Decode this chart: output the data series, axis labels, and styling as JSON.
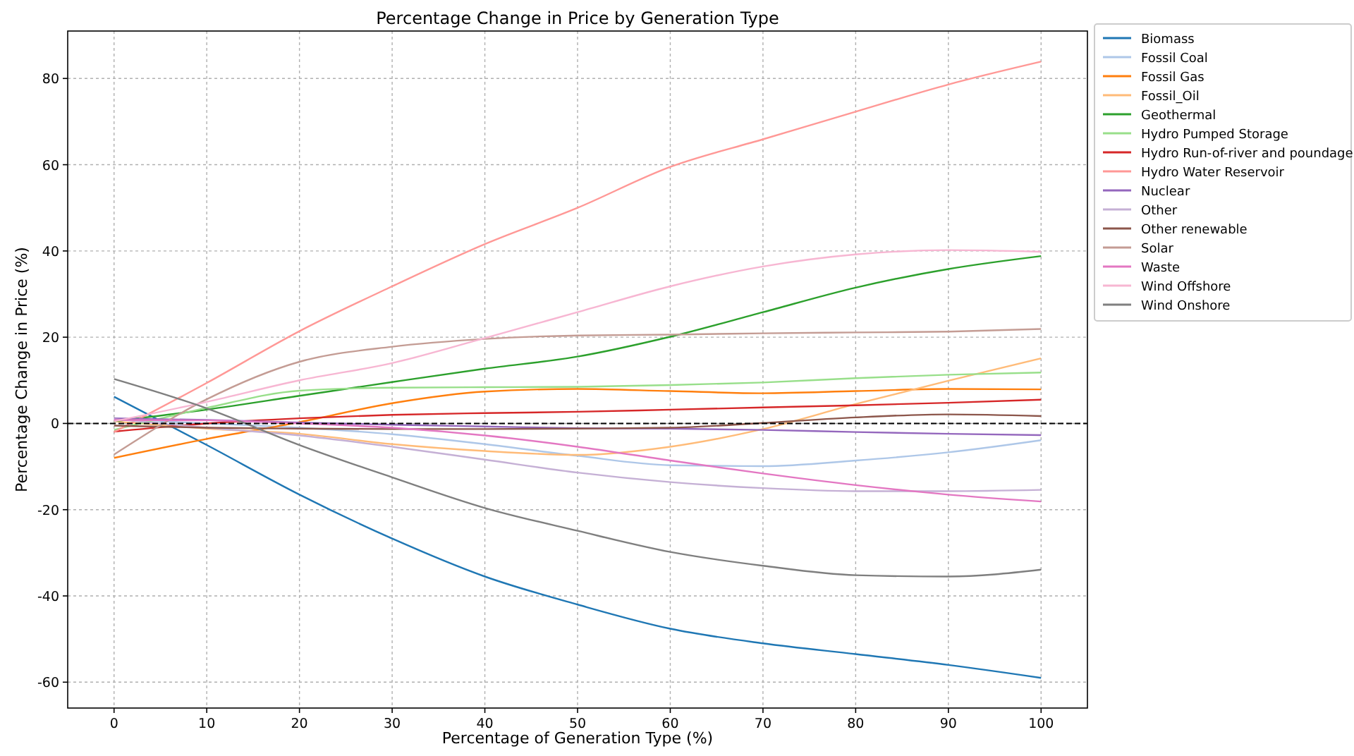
{
  "chart_data": {
    "type": "line",
    "title": "Percentage Change in Price by Generation Type",
    "xlabel": "Percentage of Generation Type (%)",
    "ylabel": "Percentage Change in Price (%)",
    "x": [
      0,
      10,
      20,
      30,
      40,
      50,
      60,
      70,
      80,
      90,
      100
    ],
    "xlim": [
      -5,
      105
    ],
    "xticks": [
      0,
      10,
      20,
      30,
      40,
      50,
      60,
      70,
      80,
      90,
      100
    ],
    "ylim": [
      -66,
      91
    ],
    "yticks": [
      -60,
      -40,
      -20,
      0,
      20,
      40,
      60,
      80
    ],
    "grid": true,
    "legend": "top right",
    "line_style": "solid",
    "ref_lines": [
      {
        "axis": "y",
        "value": 0,
        "color": "#000000",
        "line_style": "dashed"
      }
    ],
    "series": [
      {
        "name": "Biomass",
        "color": "#1f77b4",
        "values": [
          6.2,
          -5,
          -16.5,
          -26.7,
          -35.5,
          -42,
          -47.6,
          -51,
          -53.5,
          -56,
          -59
        ]
      },
      {
        "name": "Fossil Coal",
        "color": "#aec7e8",
        "values": [
          1,
          0,
          -1,
          -2.5,
          -4.8,
          -7.5,
          -9.7,
          -9.9,
          -8.6,
          -6.7,
          -3.9
        ]
      },
      {
        "name": "Fossil Gas",
        "color": "#ff7f0e",
        "values": [
          -8,
          -3.6,
          0.3,
          4.7,
          7.4,
          8,
          7.5,
          7,
          7.5,
          8,
          7.9
        ]
      },
      {
        "name": "Fossil_Oil",
        "color": "#ffbb78",
        "values": [
          0.5,
          -1.2,
          -2.4,
          -4.8,
          -6.4,
          -7.3,
          -5.4,
          -1.3,
          4.5,
          9.9,
          15.1
        ]
      },
      {
        "name": "Geothermal",
        "color": "#2ca02c",
        "values": [
          0.5,
          3.2,
          6.4,
          9.6,
          12.7,
          15.5,
          20.1,
          25.8,
          31.5,
          35.8,
          38.8
        ]
      },
      {
        "name": "Hydro Pumped Storage",
        "color": "#98df8a",
        "values": [
          -1.5,
          3.6,
          7.6,
          8.3,
          8.4,
          8.5,
          8.9,
          9.5,
          10.5,
          11.3,
          11.8
        ]
      },
      {
        "name": "Hydro Run-of-river and poundage",
        "color": "#d62728",
        "values": [
          -1.9,
          0,
          1.2,
          2,
          2.4,
          2.7,
          3.2,
          3.7,
          4.2,
          4.8,
          5.5
        ]
      },
      {
        "name": "Hydro Water Reservoir",
        "color": "#ff9896",
        "values": [
          -2,
          9.4,
          21.4,
          31.8,
          41.6,
          50,
          59.5,
          65.9,
          72.3,
          78.6,
          83.9
        ]
      },
      {
        "name": "Nuclear",
        "color": "#9467bd",
        "values": [
          1.2,
          0.8,
          0.2,
          -0.3,
          -0.7,
          -1.1,
          -1.2,
          -1.5,
          -2,
          -2.4,
          -2.7
        ]
      },
      {
        "name": "Other",
        "color": "#c5b0d5",
        "values": [
          1,
          -1,
          -2.8,
          -5.4,
          -8.4,
          -11.4,
          -13.6,
          -15,
          -15.7,
          -15.7,
          -15.4
        ]
      },
      {
        "name": "Other renewable",
        "color": "#8c564b",
        "values": [
          -0.5,
          -1,
          -1.2,
          -1.3,
          -1.3,
          -1.2,
          -1,
          0.1,
          1.4,
          2.1,
          1.7
        ]
      },
      {
        "name": "Solar",
        "color": "#c49c94",
        "values": [
          -7.2,
          5.6,
          14.3,
          17.8,
          19.6,
          20.4,
          20.6,
          20.9,
          21.1,
          21.3,
          21.9
        ]
      },
      {
        "name": "Waste",
        "color": "#e377c2",
        "values": [
          0.8,
          0.7,
          0,
          -1,
          -2.8,
          -5.4,
          -8.6,
          -11.6,
          -14.3,
          -16.5,
          -18.1
        ]
      },
      {
        "name": "Wind Offshore",
        "color": "#f7b6d2",
        "values": [
          0.5,
          5,
          10,
          14,
          19.8,
          25.8,
          31.8,
          36.4,
          39.2,
          40.2,
          39.8
        ]
      },
      {
        "name": "Wind Onshore",
        "color": "#7f7f7f",
        "values": [
          10.3,
          3.5,
          -5,
          -12.5,
          -19.6,
          -24.9,
          -29.8,
          -33,
          -35.2,
          -35.5,
          -33.9
        ]
      }
    ]
  }
}
